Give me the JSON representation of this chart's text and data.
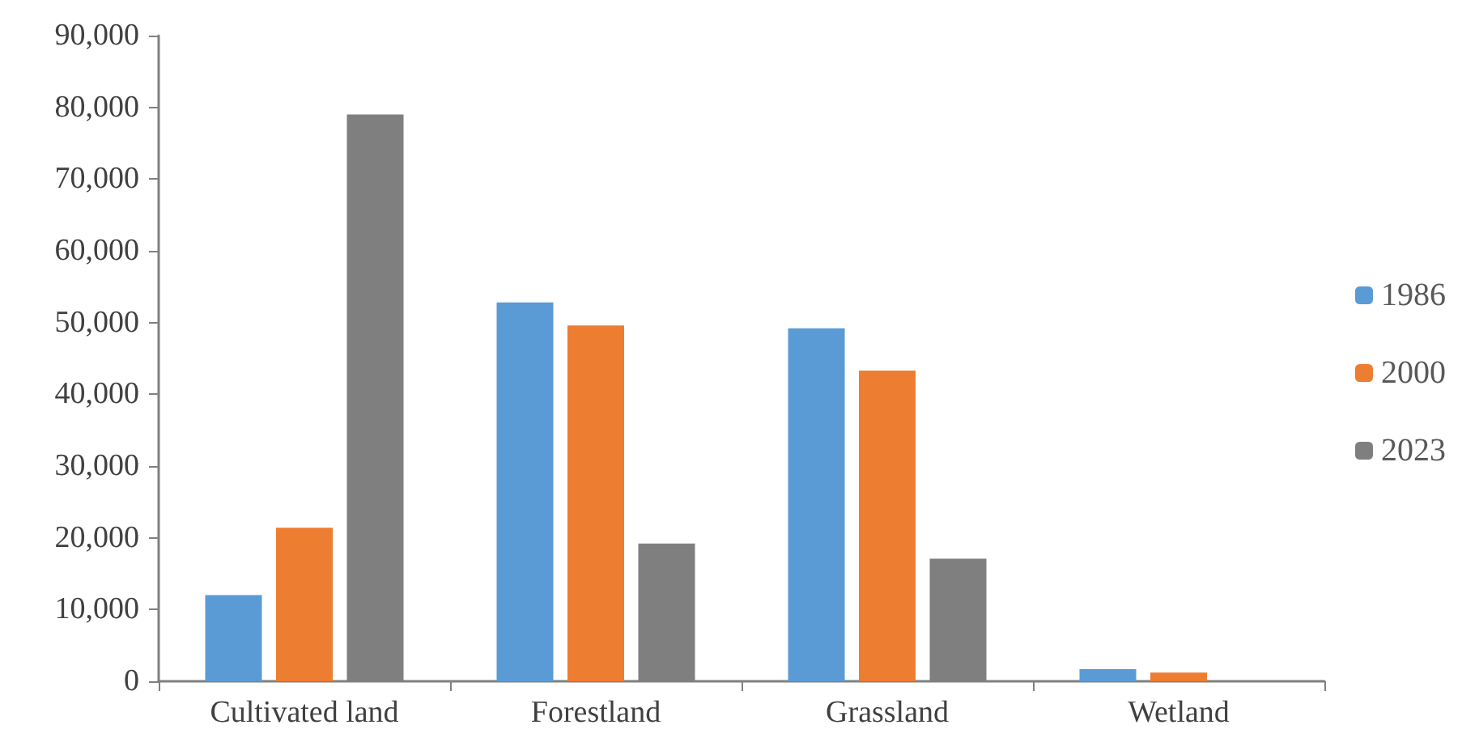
{
  "chart_data": {
    "type": "bar",
    "categories": [
      "Cultivated land",
      "Forestland",
      "Grassland",
      "Wetland"
    ],
    "series": [
      {
        "name": "1986",
        "color": "#5b9bd5",
        "values": [
          12000,
          52800,
          49200,
          1700
        ]
      },
      {
        "name": "2000",
        "color": "#ed7d31",
        "values": [
          21400,
          49600,
          43300,
          1200
        ]
      },
      {
        "name": "2023",
        "color": "#7f7f7f",
        "values": [
          79000,
          19200,
          17100,
          0
        ]
      }
    ],
    "ylim": [
      0,
      90000
    ],
    "yticks": [
      0,
      {
        "value": 10000,
        "label": "10,000"
      },
      {
        "value": 20000,
        "label": "20,000"
      },
      {
        "value": 30000,
        "label": "30,000"
      },
      {
        "value": 40000,
        "label": "40,000"
      },
      {
        "value": 50000,
        "label": "50,000"
      },
      {
        "value": 60000,
        "label": "60,000"
      },
      {
        "value": 70000,
        "label": "70,000"
      },
      {
        "value": 80000,
        "label": "80,000"
      },
      {
        "value": 90000,
        "label": "90,000"
      }
    ],
    "grid": false,
    "legend": "right"
  }
}
